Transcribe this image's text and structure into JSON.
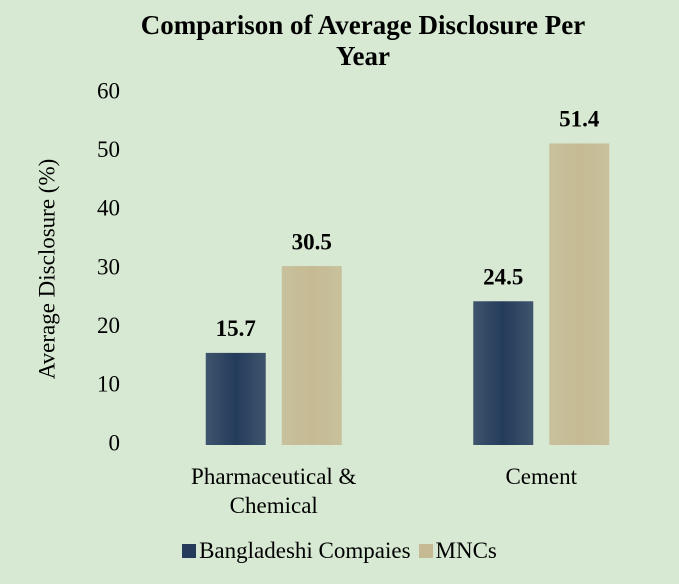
{
  "chart_data": {
    "type": "bar",
    "title": "Comparison of Average Disclosure Per Year",
    "y_label": "Average Disclosure (%)",
    "categories": [
      "Pharmaceutical & Chemical",
      "Cement"
    ],
    "series": [
      {
        "name": "Bangladeshi Compaies",
        "color": "#243b5b",
        "values": [
          15.7,
          24.5
        ]
      },
      {
        "name": "MNCs",
        "color": "#c5ba93",
        "values": [
          30.5,
          51.4
        ]
      }
    ],
    "ylim": [
      0,
      60
    ],
    "yticks": [
      0,
      10,
      20,
      30,
      40,
      50,
      60
    ],
    "grid": false,
    "legend": "bottom"
  }
}
